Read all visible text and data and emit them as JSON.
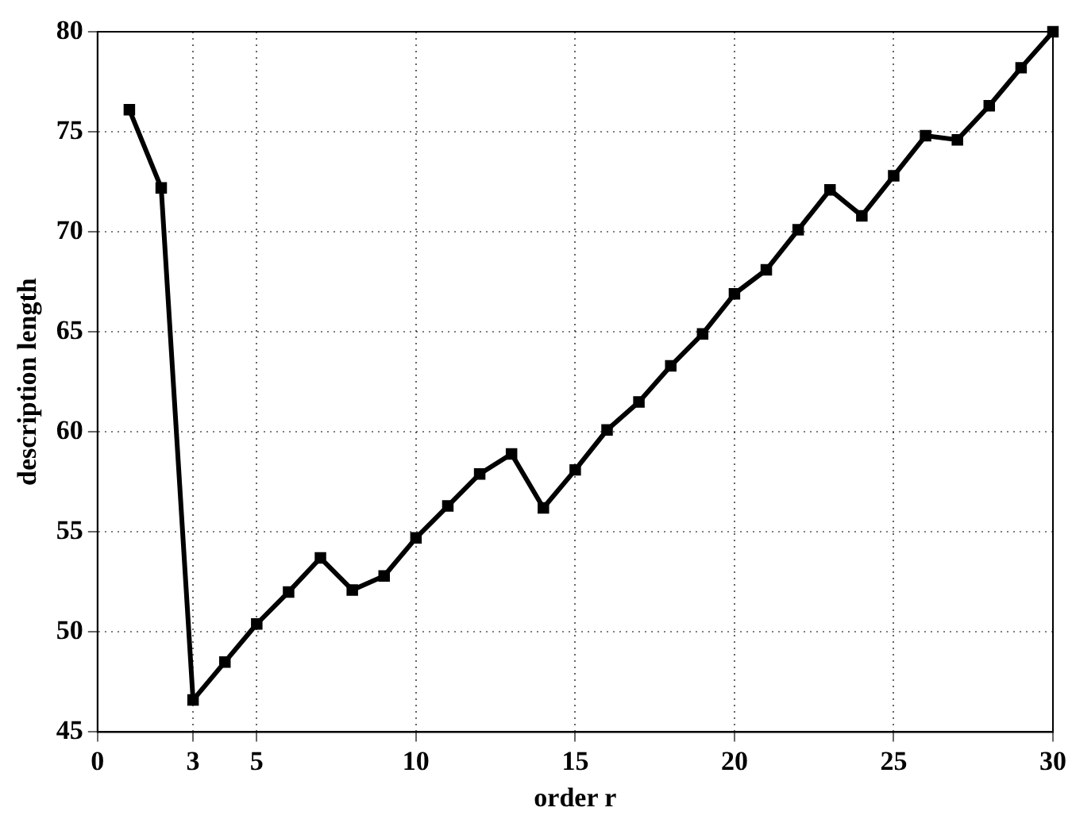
{
  "chart_data": {
    "type": "line",
    "xlabel": "order r",
    "ylabel": "description length",
    "x": [
      1,
      2,
      3,
      4,
      5,
      6,
      7,
      8,
      9,
      10,
      11,
      12,
      13,
      14,
      15,
      16,
      17,
      18,
      19,
      20,
      21,
      22,
      23,
      24,
      25,
      26,
      27,
      28,
      29,
      30
    ],
    "series": [
      {
        "color": "#000000",
        "values": [
          76.1,
          72.2,
          46.6,
          48.5,
          50.4,
          52.0,
          53.7,
          52.1,
          52.8,
          54.7,
          56.3,
          57.9,
          58.9,
          56.2,
          58.1,
          60.1,
          61.5,
          63.3,
          64.9,
          66.9,
          68.1,
          70.1,
          72.1,
          70.8,
          72.8,
          74.8,
          74.6,
          76.3,
          78.2,
          80
        ]
      }
    ],
    "xlim": [
      0,
      30
    ],
    "xticks": [
      0,
      3,
      5,
      10,
      15,
      20,
      25,
      30
    ],
    "ylim": [
      45,
      80
    ],
    "yticks": [
      45,
      50,
      55,
      60,
      65,
      70,
      75,
      80
    ],
    "grid": true,
    "legend": false,
    "marker": "square",
    "line_style": "solid"
  }
}
